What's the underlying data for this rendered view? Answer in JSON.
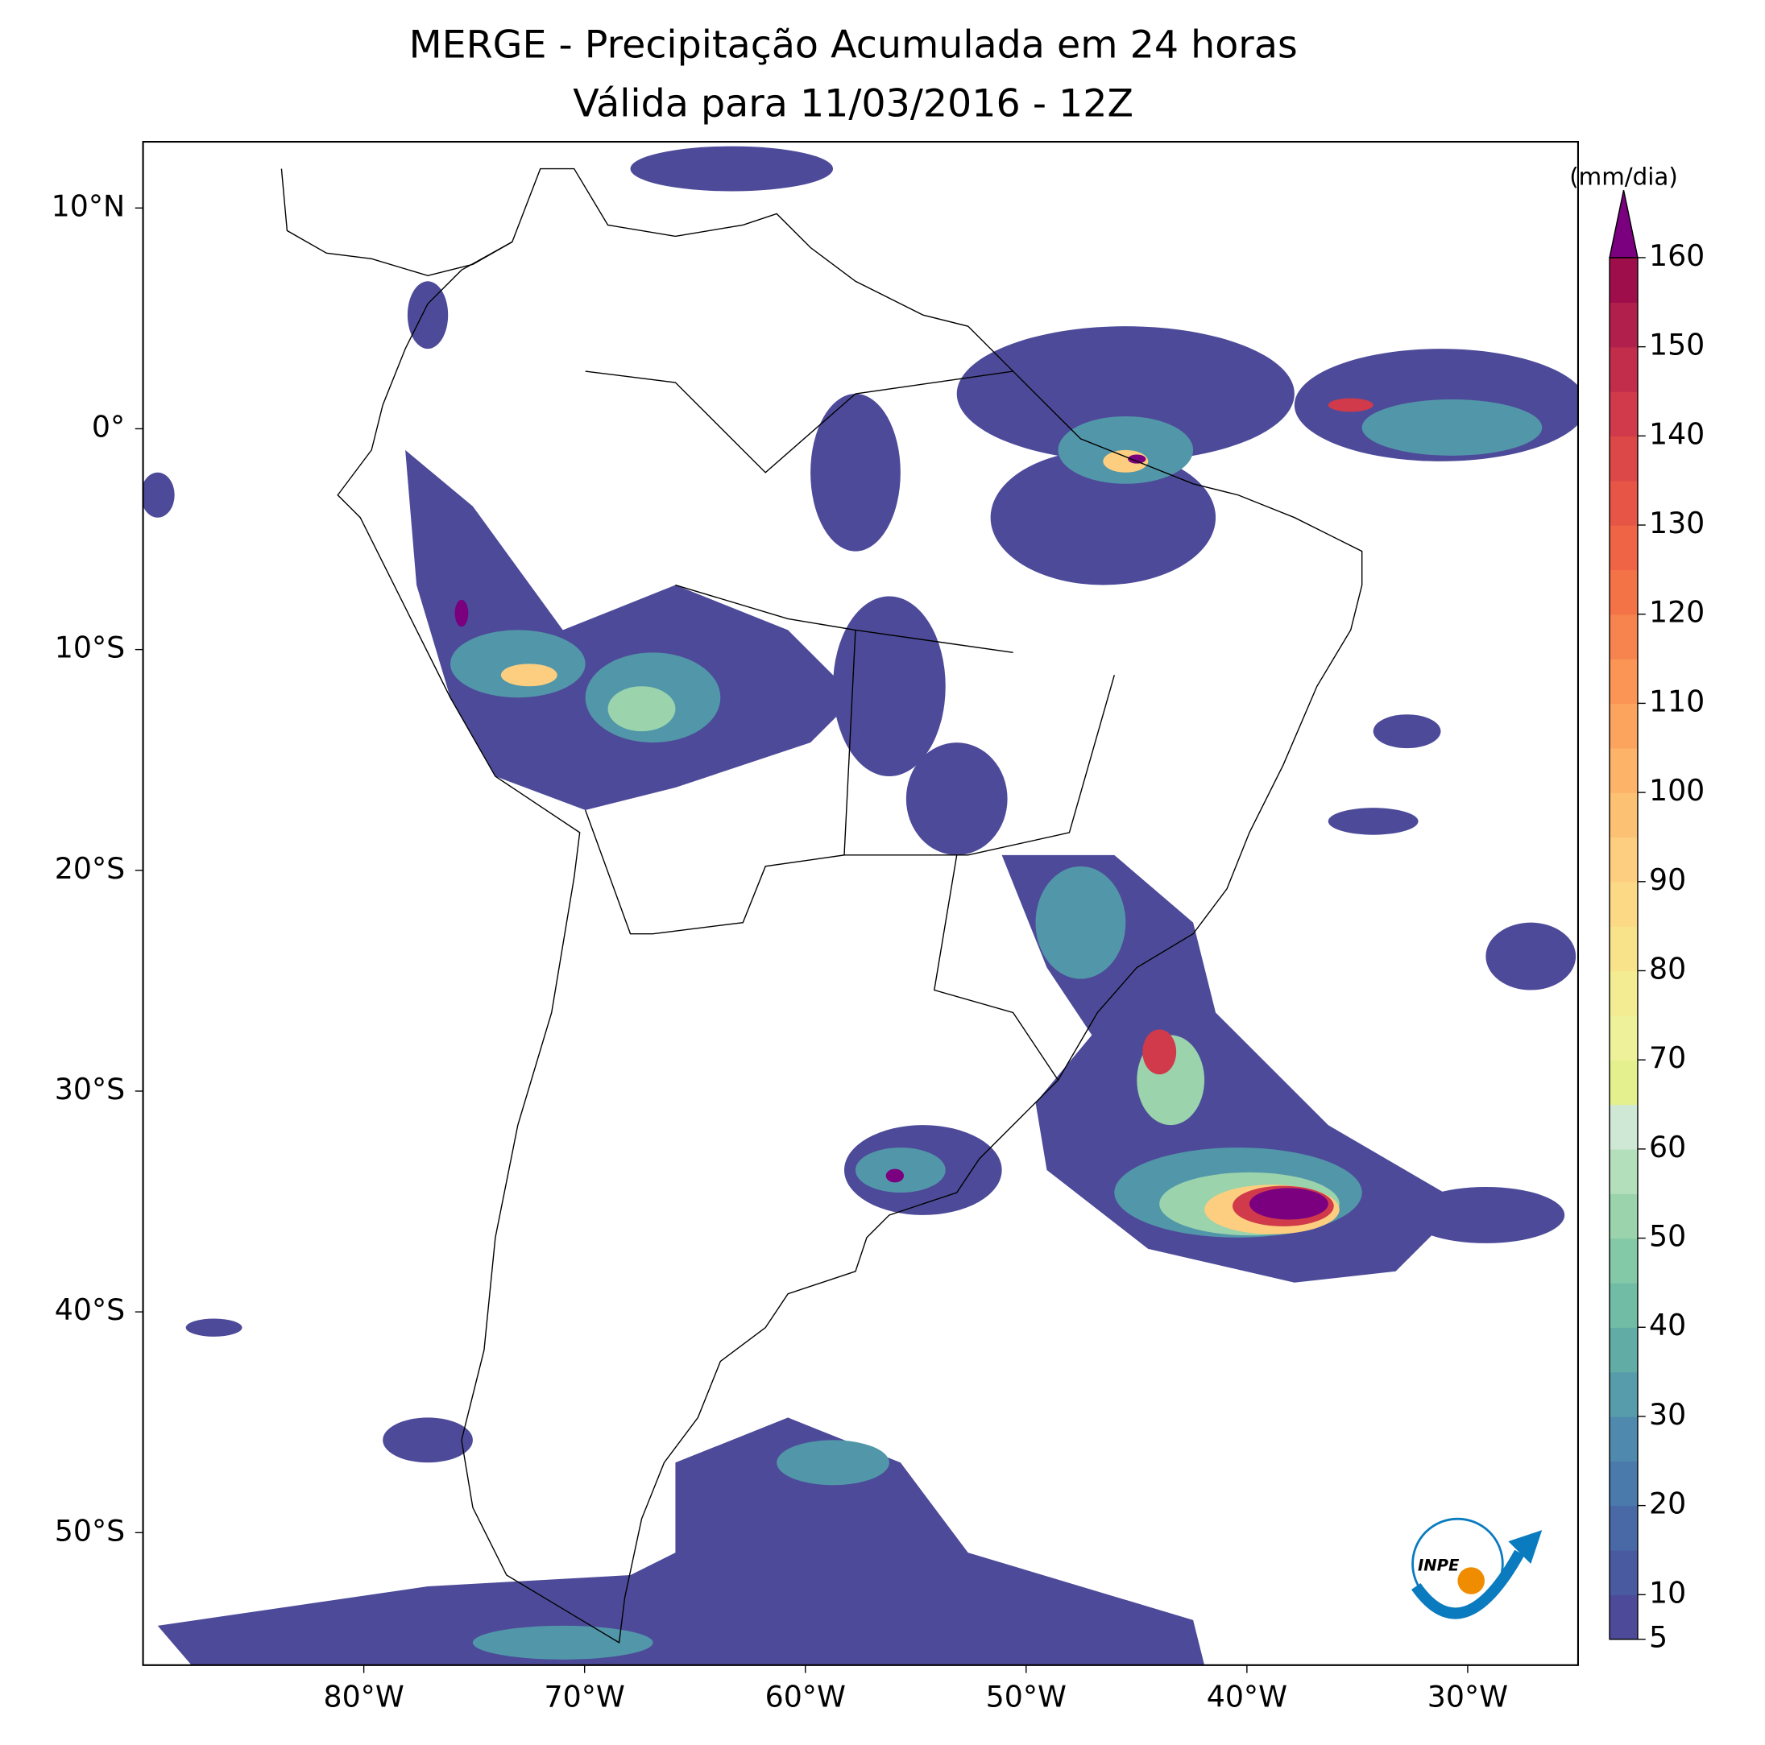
{
  "chart_data": {
    "type": "map",
    "title": "MERGE - Precipitação Acumulada em 24 horas",
    "subtitle": "Válida para 11/03/2016 - 12Z",
    "xlim": [
      -90,
      -25
    ],
    "ylim": [
      -56,
      13
    ],
    "xticks": [
      {
        "value": -80,
        "label": "80°W"
      },
      {
        "value": -70,
        "label": "70°W"
      },
      {
        "value": -60,
        "label": "60°W"
      },
      {
        "value": -50,
        "label": "50°W"
      },
      {
        "value": -40,
        "label": "40°W"
      },
      {
        "value": -30,
        "label": "30°W"
      }
    ],
    "yticks": [
      {
        "value": 10,
        "label": "10°N"
      },
      {
        "value": 0,
        "label": "0°"
      },
      {
        "value": -10,
        "label": "10°S"
      },
      {
        "value": -20,
        "label": "20°S"
      },
      {
        "value": -30,
        "label": "30°S"
      },
      {
        "value": -40,
        "label": "40°S"
      },
      {
        "value": -50,
        "label": "50°S"
      }
    ],
    "colorbar": {
      "label": "(mm/dia)",
      "lim": [
        5,
        160
      ],
      "ticks": [
        5,
        10,
        20,
        30,
        40,
        50,
        60,
        70,
        80,
        90,
        100,
        110,
        120,
        130,
        140,
        150,
        160
      ],
      "colors": [
        "#4d4b99",
        "#4a5aa0",
        "#4868a6",
        "#4a79ab",
        "#4f8aae",
        "#569cab",
        "#62aca6",
        "#71bca5",
        "#84c9a7",
        "#9ad3ac",
        "#b3dfbb",
        "#cfe8d6",
        "#e4ef8e",
        "#eef09a",
        "#f4ec92",
        "#f8e38a",
        "#fbd985",
        "#fdce7f",
        "#fdc174",
        "#fdb468",
        "#fca45e",
        "#fa9556",
        "#f7844e",
        "#f47346",
        "#ee6445",
        "#e65545",
        "#dc4747",
        "#d03a4a",
        "#c22d4c",
        "#b1204c",
        "#9e0e4b"
      ],
      "extend_color": "#7a0080"
    }
  },
  "logo": "INPE"
}
